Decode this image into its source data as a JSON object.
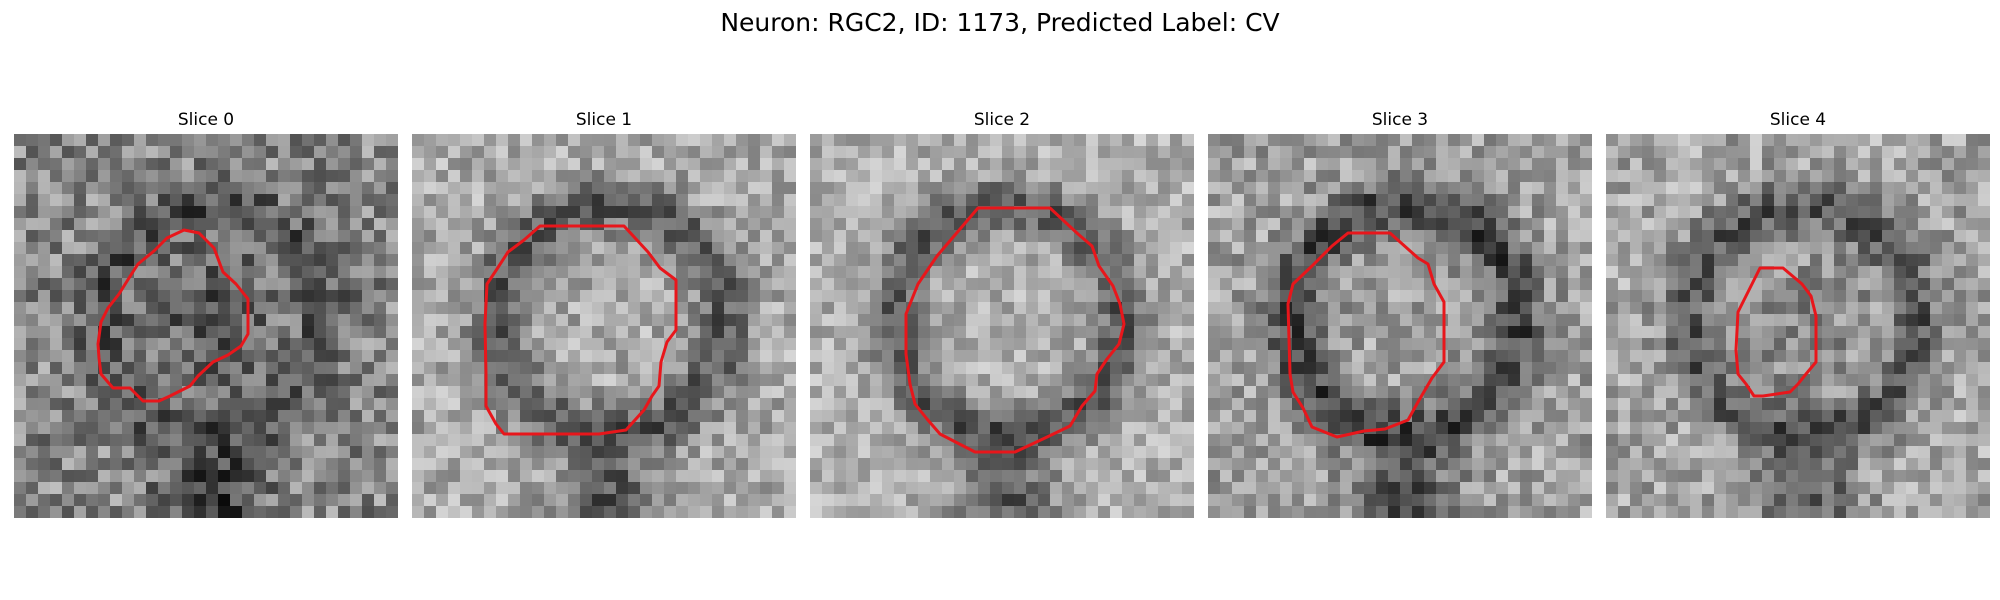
{
  "figure": {
    "title": "Neuron: RGC2, ID: 1173, Predicted Label: CV"
  },
  "slices": [
    {
      "label": "Slice 0",
      "seed": 11,
      "base": 135,
      "contrast": 70,
      "dark_ring": 0.45,
      "dark_core": 0.55,
      "outline_size": "small"
    },
    {
      "label": "Slice 1",
      "seed": 23,
      "base": 170,
      "contrast": 55,
      "dark_ring": 0.75,
      "dark_core": 0.0,
      "outline_size": "medium"
    },
    {
      "label": "Slice 2",
      "seed": 37,
      "base": 175,
      "contrast": 50,
      "dark_ring": 0.8,
      "dark_core": 0.0,
      "outline_size": "large"
    },
    {
      "label": "Slice 3",
      "seed": 53,
      "base": 160,
      "contrast": 60,
      "dark_ring": 0.85,
      "dark_core": 0.0,
      "outline_size": "medium"
    },
    {
      "label": "Slice 4",
      "seed": 71,
      "base": 165,
      "contrast": 60,
      "dark_ring": 0.7,
      "dark_core": 0.35,
      "outline_size": "small"
    }
  ],
  "colors": {
    "outline": "#e8161b",
    "background": "#ffffff"
  }
}
